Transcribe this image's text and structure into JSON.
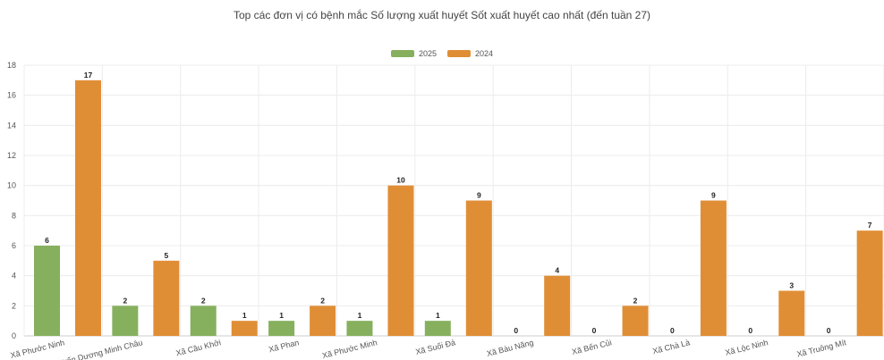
{
  "chart_data": {
    "type": "bar",
    "title": "Top các đơn vị có bệnh mắc Số lượng xuất huyết Sốt xuất huyết cao nhất (đến tuần 27)",
    "categories": [
      "Xã Phước Ninh",
      "Thị trấn Dương Minh Châu",
      "Xã Cầu Khởi",
      "Xã Phan",
      "Xã Phước Minh",
      "Xã Suối Đá",
      "Xã Bàu Năng",
      "Xã Bến Củi",
      "Xã Chà Là",
      "Xã Lộc Ninh",
      "Xã Truông Mít"
    ],
    "series": [
      {
        "name": "2025",
        "color": "#86b05e",
        "values": [
          6,
          2,
          2,
          1,
          1,
          1,
          0,
          0,
          0,
          0,
          0
        ]
      },
      {
        "name": "2024",
        "color": "#e08e36",
        "values": [
          17,
          5,
          1,
          2,
          10,
          9,
          4,
          2,
          9,
          3,
          7
        ]
      }
    ],
    "ylim": [
      0,
      18
    ],
    "yticks": [
      0,
      2,
      4,
      6,
      8,
      10,
      12,
      14,
      16,
      18
    ],
    "xlabel": "",
    "ylabel": "",
    "grid": true,
    "legend_position": "top-center"
  }
}
